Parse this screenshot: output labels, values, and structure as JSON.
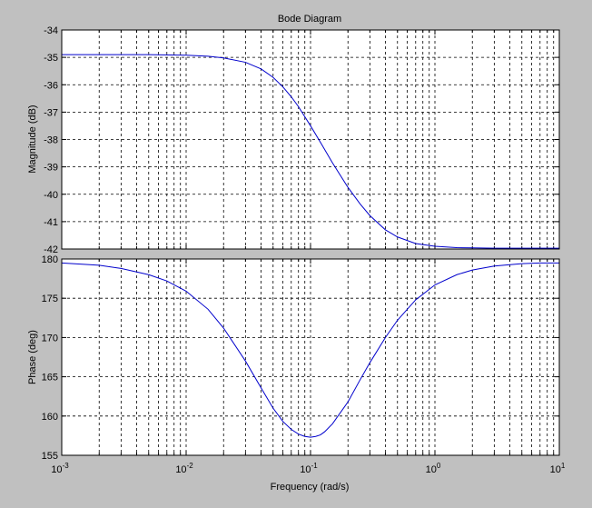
{
  "chart_data": [
    {
      "type": "line",
      "title": "Bode Diagram",
      "xlabel": "Frequency  (rad/s)",
      "ylabel": "Magnitude (dB)",
      "xscale": "log",
      "xlim": [
        0.001,
        10
      ],
      "ylim": [
        -42,
        -34
      ],
      "grid": true,
      "line_color": "#0000cc",
      "yticks": [
        -34,
        -35,
        -36,
        -37,
        -38,
        -39,
        -40,
        -41,
        -42
      ],
      "ytick_labels": [
        "-34",
        "-35",
        "-36",
        "-37",
        "-38",
        "-39",
        "-40",
        "-41",
        "-42"
      ],
      "series": [
        {
          "x": [
            0.001,
            0.002,
            0.005,
            0.01,
            0.015,
            0.02,
            0.03,
            0.04,
            0.05,
            0.06,
            0.07,
            0.08,
            0.1,
            0.12,
            0.15,
            0.2,
            0.25,
            0.3,
            0.4,
            0.5,
            0.7,
            1,
            1.5,
            2,
            3,
            5,
            10
          ],
          "y": [
            -34.9,
            -34.9,
            -34.9,
            -34.92,
            -34.96,
            -35.02,
            -35.18,
            -35.42,
            -35.73,
            -36.08,
            -36.44,
            -36.8,
            -37.5,
            -38.1,
            -38.85,
            -39.75,
            -40.35,
            -40.78,
            -41.3,
            -41.56,
            -41.8,
            -41.9,
            -41.95,
            -41.96,
            -41.97,
            -41.97,
            -41.97
          ]
        }
      ]
    },
    {
      "type": "line",
      "xlabel": "Frequency  (rad/s)",
      "ylabel": "Phase (deg)",
      "xscale": "log",
      "xlim": [
        0.001,
        10
      ],
      "ylim": [
        155,
        180
      ],
      "grid": true,
      "line_color": "#0000cc",
      "yticks": [
        155,
        160,
        165,
        170,
        175,
        180
      ],
      "ytick_labels": [
        "155",
        "160",
        "165",
        "170",
        "175",
        "180"
      ],
      "xtick_labels": [
        {
          "base": "10",
          "exp": "-3"
        },
        {
          "base": "10",
          "exp": "-2"
        },
        {
          "base": "10",
          "exp": "-1"
        },
        {
          "base": "10",
          "exp": "0"
        },
        {
          "base": "10",
          "exp": "1"
        }
      ],
      "series": [
        {
          "x": [
            0.001,
            0.002,
            0.003,
            0.005,
            0.007,
            0.01,
            0.015,
            0.02,
            0.03,
            0.04,
            0.05,
            0.06,
            0.07,
            0.08,
            0.09,
            0.1,
            0.11,
            0.12,
            0.13,
            0.15,
            0.2,
            0.25,
            0.3,
            0.4,
            0.5,
            0.7,
            1,
            1.5,
            2,
            3,
            5,
            7,
            10
          ],
          "y": [
            179.5,
            179.2,
            178.8,
            178.0,
            177.2,
            175.9,
            173.6,
            171.2,
            167.0,
            163.6,
            161.0,
            159.3,
            158.3,
            157.7,
            157.4,
            157.3,
            157.4,
            157.6,
            158.0,
            159.0,
            161.8,
            164.6,
            166.8,
            170.0,
            172.2,
            174.8,
            176.7,
            178.0,
            178.6,
            179.1,
            179.4,
            179.5,
            179.5
          ]
        }
      ]
    }
  ]
}
